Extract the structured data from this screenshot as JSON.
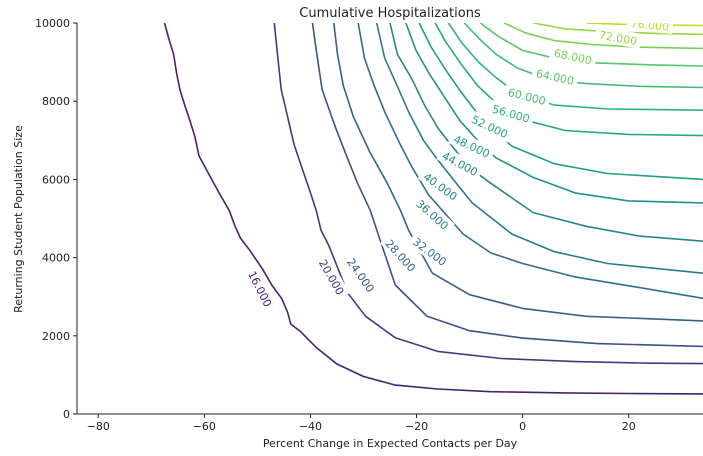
{
  "chart_data": {
    "type": "contour",
    "title": "Cumulative Hospitalizations",
    "xlabel": "Percent Change in Expected Contacts per Day",
    "ylabel": "Returning Student Population Size",
    "xlim": [
      -84,
      34
    ],
    "ylim": [
      0,
      10000
    ],
    "xticks": [
      -80,
      -60,
      -40,
      -20,
      0,
      20
    ],
    "yticks": [
      0,
      2000,
      4000,
      6000,
      8000,
      10000
    ],
    "colormap": "viridis",
    "grid": false,
    "levels": [
      {
        "value": 16,
        "label": "16.000",
        "color": "#482071",
        "points": [
          [
            -67.5,
            10000
          ],
          [
            -66.7,
            9600
          ],
          [
            -65.8,
            9200
          ],
          [
            -65.2,
            8700
          ],
          [
            -64.6,
            8300
          ],
          [
            -63.7,
            7900
          ],
          [
            -62.7,
            7500
          ],
          [
            -61.8,
            7100
          ],
          [
            -61.0,
            6600
          ],
          [
            -59.0,
            6100
          ],
          [
            -57.4,
            5700
          ],
          [
            -55.3,
            5200
          ],
          [
            -54.2,
            4800
          ],
          [
            -53.2,
            4500
          ],
          [
            -51.5,
            4200
          ],
          [
            -49.0,
            3700
          ],
          [
            -47.3,
            3300
          ],
          [
            -45.4,
            2950
          ],
          [
            -44.3,
            2600
          ],
          [
            -43.7,
            2300
          ],
          [
            -41.8,
            2100
          ],
          [
            -38.9,
            1700
          ],
          [
            -35.0,
            1280
          ],
          [
            -30.0,
            960
          ],
          [
            -24.0,
            740
          ],
          [
            -16.0,
            640
          ],
          [
            -6.0,
            570
          ],
          [
            8.0,
            540
          ],
          [
            20.0,
            525
          ],
          [
            34.0,
            515
          ]
        ],
        "label_at": [
          -49.5,
          3200
        ],
        "label_rot": 63
      },
      {
        "value": 20,
        "label": "20.000",
        "color": "#3f3a86",
        "points": [
          [
            -46.8,
            10000
          ],
          [
            -46.2,
            9200
          ],
          [
            -45.5,
            8300
          ],
          [
            -44.3,
            7600
          ],
          [
            -43.1,
            6900
          ],
          [
            -41.6,
            6300
          ],
          [
            -40.1,
            5700
          ],
          [
            -38.9,
            5200
          ],
          [
            -38.0,
            4700
          ],
          [
            -36.5,
            4300
          ],
          [
            -33.0,
            3100
          ],
          [
            -29.6,
            2500
          ],
          [
            -24.0,
            1950
          ],
          [
            -16.0,
            1600
          ],
          [
            -4.0,
            1420
          ],
          [
            10.0,
            1340
          ],
          [
            24.0,
            1300
          ],
          [
            34.0,
            1290
          ]
        ],
        "label_at": [
          -36.0,
          3500
        ],
        "label_rot": 60
      },
      {
        "value": 24,
        "label": "24.000",
        "color": "#3b528b",
        "points": [
          [
            -39.6,
            10000
          ],
          [
            -38.9,
            9300
          ],
          [
            -37.8,
            8300
          ],
          [
            -35.2,
            7300
          ],
          [
            -32.9,
            6500
          ],
          [
            -31.1,
            5900
          ],
          [
            -28.7,
            5200
          ],
          [
            -27.0,
            4500
          ],
          [
            -24.0,
            3300
          ],
          [
            -18.0,
            2500
          ],
          [
            -10.0,
            2130
          ],
          [
            0.0,
            1940
          ],
          [
            14.0,
            1800
          ],
          [
            34.0,
            1730
          ]
        ],
        "label_at": [
          -30.5,
          3550
        ],
        "label_rot": 55
      },
      {
        "value": 28,
        "label": "28.000",
        "color": "#35618d",
        "points": [
          [
            -35.6,
            10000
          ],
          [
            -34.9,
            9200
          ],
          [
            -33.8,
            8400
          ],
          [
            -31.9,
            7600
          ],
          [
            -28.8,
            6700
          ],
          [
            -25.5,
            5900
          ],
          [
            -23.0,
            5200
          ],
          [
            -21.5,
            4700
          ],
          [
            -17.0,
            3600
          ],
          [
            -10.0,
            3050
          ],
          [
            0.0,
            2700
          ],
          [
            12.0,
            2500
          ],
          [
            34.0,
            2380
          ]
        ],
        "label_at": [
          -23.0,
          4050
        ],
        "label_rot": 48
      },
      {
        "value": 32,
        "label": "32.000",
        "color": "#2f6e8e",
        "points": [
          [
            -31.0,
            10000
          ],
          [
            -29.8,
            9100
          ],
          [
            -28.0,
            8400
          ],
          [
            -25.9,
            7700
          ],
          [
            -23.1,
            6900
          ],
          [
            -20.8,
            6300
          ],
          [
            -17.7,
            5600
          ],
          [
            -11.2,
            4600
          ],
          [
            -6.0,
            4120
          ],
          [
            0.0,
            3850
          ],
          [
            10.0,
            3500
          ],
          [
            20.0,
            3280
          ],
          [
            34.0,
            2960
          ]
        ],
        "label_at": [
          -17.5,
          4150
        ],
        "label_rot": 37
      },
      {
        "value": 36,
        "label": "36.000",
        "color": "#2a7b8e",
        "points": [
          [
            -27.5,
            10000
          ],
          [
            -26.0,
            9100
          ],
          [
            -24.0,
            8500
          ],
          [
            -21.4,
            7700
          ],
          [
            -18.7,
            7000
          ],
          [
            -16.0,
            6500
          ],
          [
            -12.5,
            5900
          ],
          [
            -9.5,
            5400
          ],
          [
            -2.0,
            4600
          ],
          [
            6.0,
            4150
          ],
          [
            16.0,
            3850
          ],
          [
            34.0,
            3600
          ]
        ],
        "label_at": [
          -17.0,
          5100
        ],
        "label_rot": 42
      },
      {
        "value": 40,
        "label": "40.000",
        "color": "#25878e",
        "points": [
          [
            -25.0,
            10000
          ],
          [
            -23.6,
            9200
          ],
          [
            -21.0,
            8600
          ],
          [
            -18.5,
            7900
          ],
          [
            -15.9,
            7300
          ],
          [
            -13.0,
            6800
          ],
          [
            -10.0,
            6300
          ],
          [
            -6.0,
            5900
          ],
          [
            2.0,
            5150
          ],
          [
            12.0,
            4800
          ],
          [
            22.0,
            4550
          ],
          [
            34.0,
            4420
          ]
        ],
        "label_at": [
          -15.5,
          5820
        ],
        "label_rot": 36
      },
      {
        "value": 44,
        "label": "44.000",
        "color": "#20928c",
        "points": [
          [
            -22.0,
            10000
          ],
          [
            -20.1,
            9300
          ],
          [
            -17.6,
            8700
          ],
          [
            -14.7,
            8100
          ],
          [
            -11.8,
            7500
          ],
          [
            -8.5,
            7000
          ],
          [
            -5.0,
            6550
          ],
          [
            2.0,
            6050
          ],
          [
            10.0,
            5650
          ],
          [
            20.0,
            5450
          ],
          [
            34.0,
            5400
          ]
        ],
        "label_at": [
          -11.8,
          6400
        ],
        "label_rot": 28
      },
      {
        "value": 48,
        "label": "48.000",
        "color": "#1f9e89",
        "points": [
          [
            -19.5,
            10000
          ],
          [
            -17.3,
            9400
          ],
          [
            -14.5,
            8800
          ],
          [
            -11.7,
            8250
          ],
          [
            -8.6,
            7700
          ],
          [
            -5.5,
            7250
          ],
          [
            -2.0,
            6850
          ],
          [
            6.0,
            6400
          ],
          [
            16.0,
            6150
          ],
          [
            34.0,
            6000
          ]
        ],
        "label_at": [
          -9.6,
          6850
        ],
        "label_rot": 25
      },
      {
        "value": 52,
        "label": "52.000",
        "color": "#22a884",
        "points": [
          [
            -16.5,
            10000
          ],
          [
            -14.4,
            9500
          ],
          [
            -11.6,
            8950
          ],
          [
            -8.5,
            8400
          ],
          [
            -5.0,
            7950
          ],
          [
            1.0,
            7500
          ],
          [
            8.0,
            7250
          ],
          [
            20.0,
            7150
          ],
          [
            34.0,
            7120
          ]
        ],
        "label_at": [
          -6.2,
          7350
        ],
        "label_rot": 25
      },
      {
        "value": 56,
        "label": "56.000",
        "color": "#2db27d",
        "points": [
          [
            -14.0,
            10000
          ],
          [
            -11.5,
            9500
          ],
          [
            -8.3,
            9000
          ],
          [
            -5.0,
            8600
          ],
          [
            -1.0,
            8200
          ],
          [
            6.0,
            7900
          ],
          [
            16.0,
            7800
          ],
          [
            34.0,
            7770
          ]
        ],
        "label_at": [
          -2.2,
          7680
        ],
        "label_rot": 16
      },
      {
        "value": 60,
        "label": "60.000",
        "color": "#3fbc73",
        "points": [
          [
            -11.0,
            10000
          ],
          [
            -8.2,
            9600
          ],
          [
            -5.0,
            9200
          ],
          [
            -1.0,
            8850
          ],
          [
            5.0,
            8550
          ],
          [
            12.0,
            8450
          ],
          [
            22.0,
            8380
          ],
          [
            34.0,
            8350
          ]
        ],
        "label_at": [
          0.8,
          8120
        ],
        "label_rot": 14
      },
      {
        "value": 64,
        "label": "64.000",
        "color": "#56c667",
        "points": [
          [
            -8.0,
            10000
          ],
          [
            -4.5,
            9650
          ],
          [
            0.0,
            9300
          ],
          [
            6.0,
            9100
          ],
          [
            14.0,
            8980
          ],
          [
            24.0,
            8930
          ],
          [
            34.0,
            8900
          ]
        ],
        "label_at": [
          6.1,
          8620
        ],
        "label_rot": 12
      },
      {
        "value": 68,
        "label": "68.000",
        "color": "#75d054",
        "points": [
          [
            -3.5,
            10000
          ],
          [
            0.5,
            9750
          ],
          [
            6.0,
            9550
          ],
          [
            13.0,
            9450
          ],
          [
            22.0,
            9380
          ],
          [
            34.0,
            9350
          ]
        ],
        "label_at": [
          9.5,
          9140
        ],
        "label_rot": 12
      },
      {
        "value": 72,
        "label": "72.000",
        "color": "#95d840",
        "points": [
          [
            2.0,
            10000
          ],
          [
            8.0,
            9850
          ],
          [
            16.0,
            9780
          ],
          [
            26.0,
            9730
          ],
          [
            34.0,
            9710
          ]
        ],
        "label_at": [
          18.0,
          9620
        ],
        "label_rot": 10
      },
      {
        "value": 76,
        "label": "76.000",
        "color": "#b8de29",
        "points": [
          [
            12.0,
            10000
          ],
          [
            20.0,
            9960
          ],
          [
            30.0,
            9940
          ],
          [
            34.0,
            9935
          ]
        ],
        "label_at": [
          24.0,
          9950
        ],
        "label_rot": 5
      }
    ]
  }
}
